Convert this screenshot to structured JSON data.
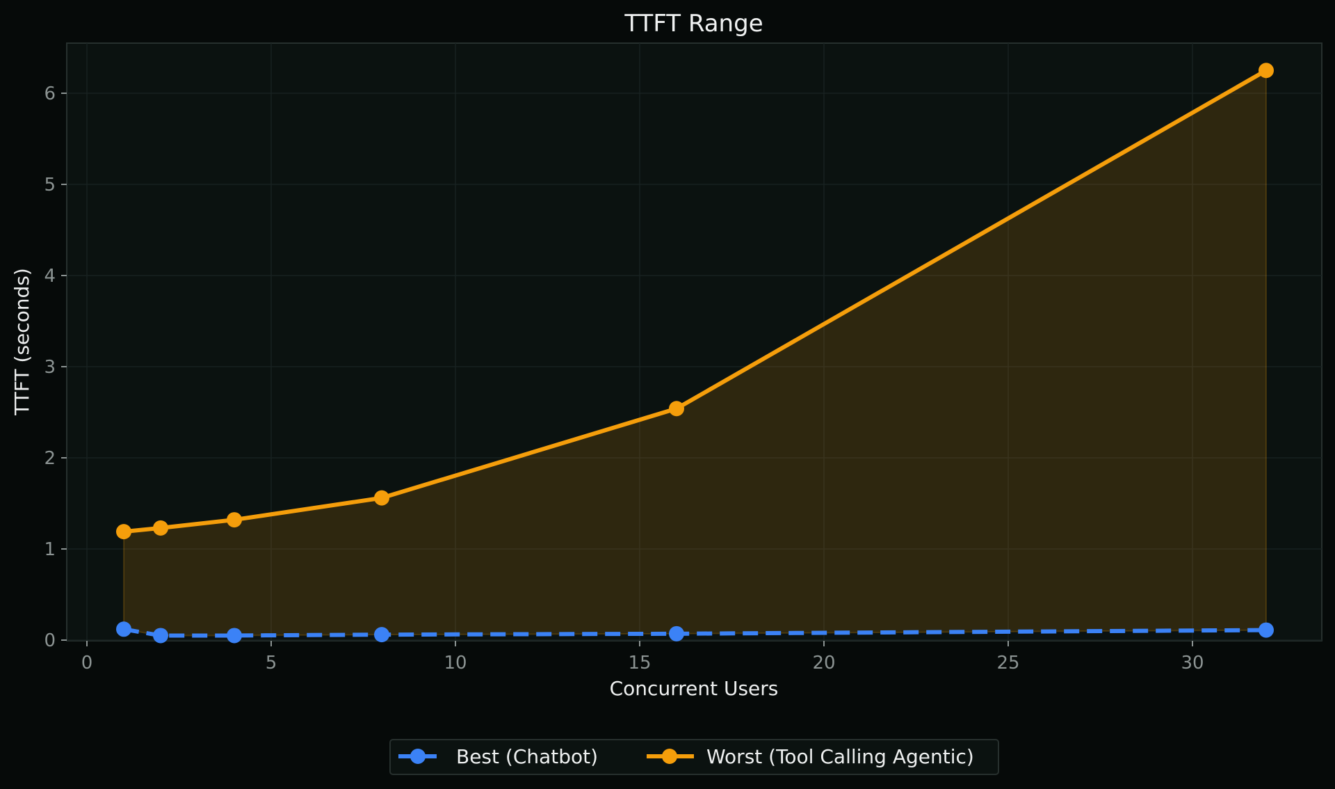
{
  "chart_data": {
    "type": "line",
    "title": "TTFT Range",
    "xlabel": "Concurrent Users",
    "ylabel": "TTFT (seconds)",
    "x": [
      1,
      2,
      4,
      8,
      16,
      32
    ],
    "series": [
      {
        "name": "Best (Chatbot)",
        "values": [
          0.12,
          0.05,
          0.05,
          0.06,
          0.07,
          0.11
        ],
        "color": "#3b82f6",
        "linestyle": "dashed",
        "marker": "circle"
      },
      {
        "name": "Worst (Tool Calling Agentic)",
        "values": [
          1.19,
          1.23,
          1.32,
          1.56,
          2.54,
          6.25
        ],
        "color": "#f59e0b",
        "linestyle": "solid",
        "marker": "circle"
      }
    ],
    "fill_between": {
      "lower": "Best (Chatbot)",
      "upper": "Worst (Tool Calling Agentic)",
      "color": "#f59e0b",
      "alpha": 0.15
    },
    "xlim": [
      -0.6,
      33.5
    ],
    "ylim": [
      -0.02,
      6.55
    ],
    "xticks": [
      0,
      5,
      10,
      15,
      20,
      25,
      30
    ],
    "yticks": [
      0,
      1,
      2,
      3,
      4,
      5,
      6
    ],
    "grid": true,
    "legend_position": "lower center, outside plot"
  },
  "colors": {
    "background": "#060a09",
    "plot_background": "#0b1210",
    "grid": "#1a2220",
    "axes_edge": "#27302e",
    "best": "#3b82f6",
    "worst": "#f59e0b"
  }
}
